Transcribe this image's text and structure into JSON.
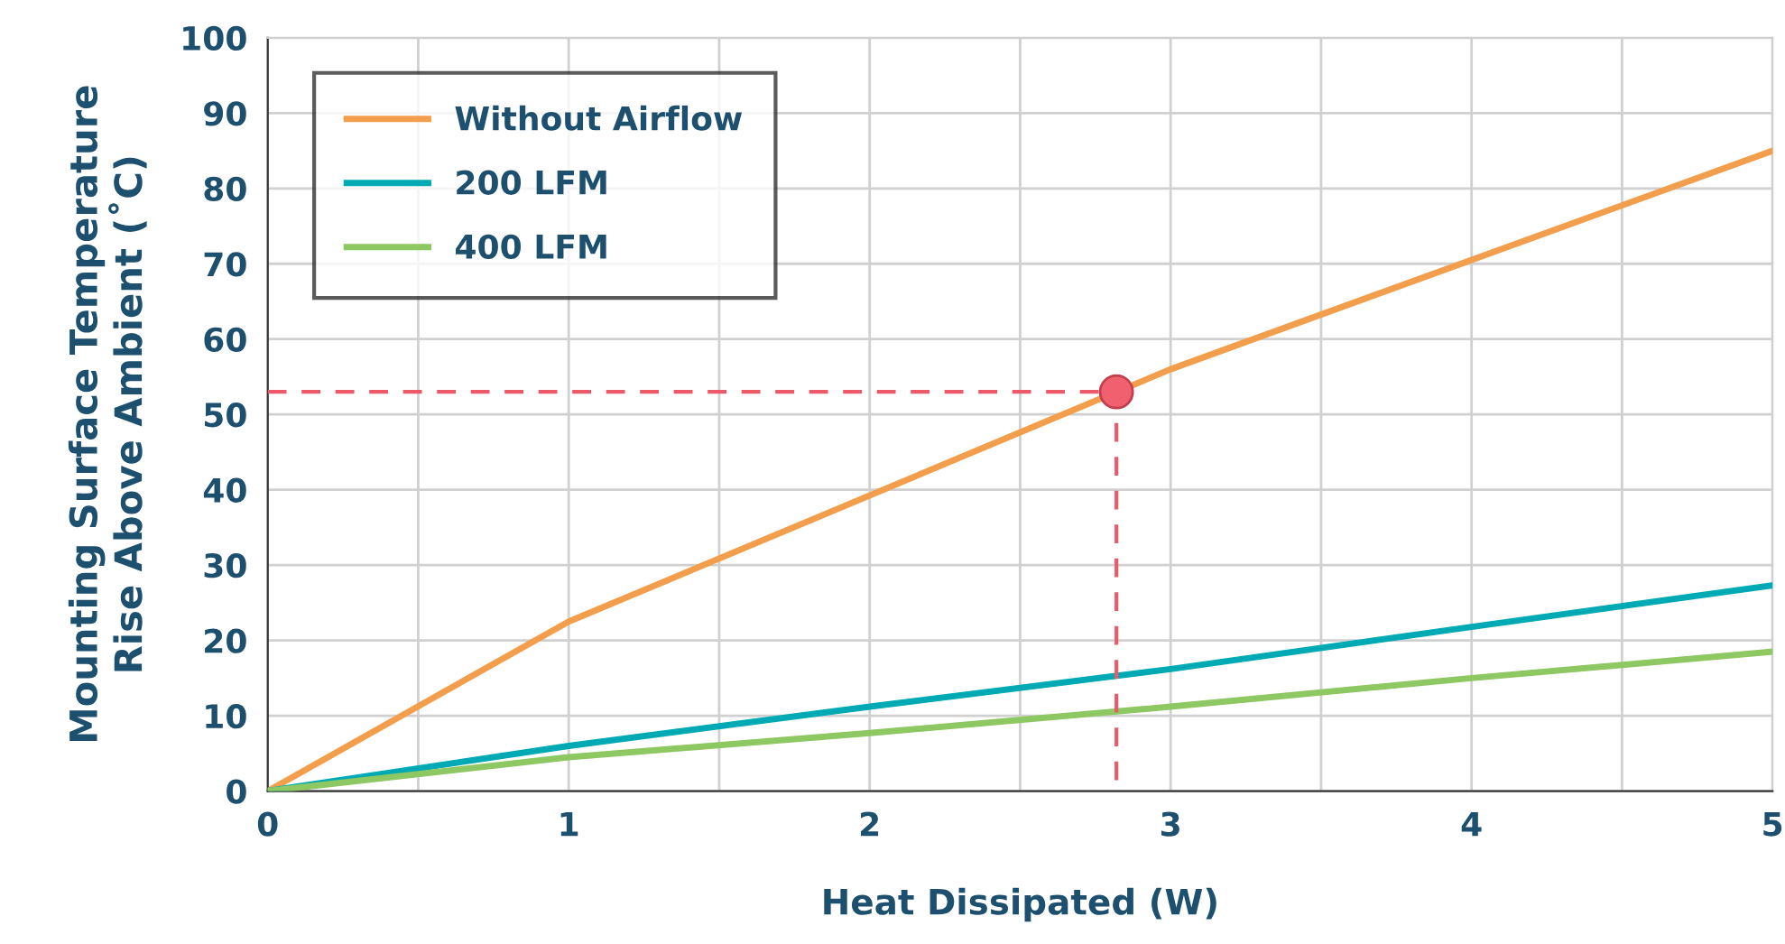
{
  "chart_data": {
    "type": "line",
    "xlabel": "Heat Dissipated (W)",
    "ylabel": "Mounting Surface Temperature\nRise Above Ambient (˚C)",
    "xlim": [
      0,
      5
    ],
    "ylim": [
      0,
      100
    ],
    "xticks": [
      0,
      {
        "value": 0.5,
        "label": null
      },
      1,
      {
        "value": 1.5,
        "label": null
      },
      2,
      {
        "value": 2.5,
        "label": null
      },
      3,
      {
        "value": 3.5,
        "label": null
      },
      4,
      {
        "value": 4.5,
        "label": null
      },
      5
    ],
    "yticks": [
      0,
      10,
      20,
      30,
      40,
      50,
      60,
      70,
      80,
      90,
      100
    ],
    "grid": true,
    "legend": "top left",
    "series": [
      {
        "name": "Without Airflow",
        "color": "#f29e4c",
        "x": [
          0,
          1,
          3,
          5
        ],
        "values": [
          0,
          22.5,
          56,
          85
        ]
      },
      {
        "name": "200 LFM",
        "color": "#00aab5",
        "x": [
          0,
          1,
          2,
          3,
          4,
          5
        ],
        "values": [
          0,
          6,
          11.2,
          16.2,
          21.8,
          27.3
        ]
      },
      {
        "name": "400 LFM",
        "color": "#8dc863",
        "x": [
          0,
          1,
          2,
          3,
          4,
          5
        ],
        "values": [
          0,
          4.5,
          7.7,
          11.2,
          15,
          18.5
        ]
      },
      {
        "type": "line",
        "line_style": "dashed",
        "color": "#ec5a6a",
        "x": [
          0,
          2.82,
          2.82
        ],
        "values": [
          53,
          53,
          0
        ]
      },
      {
        "type": "scatter",
        "marker": "circle",
        "color": "#f0606e",
        "x": [
          2.82
        ],
        "values": [
          53
        ]
      }
    ]
  }
}
